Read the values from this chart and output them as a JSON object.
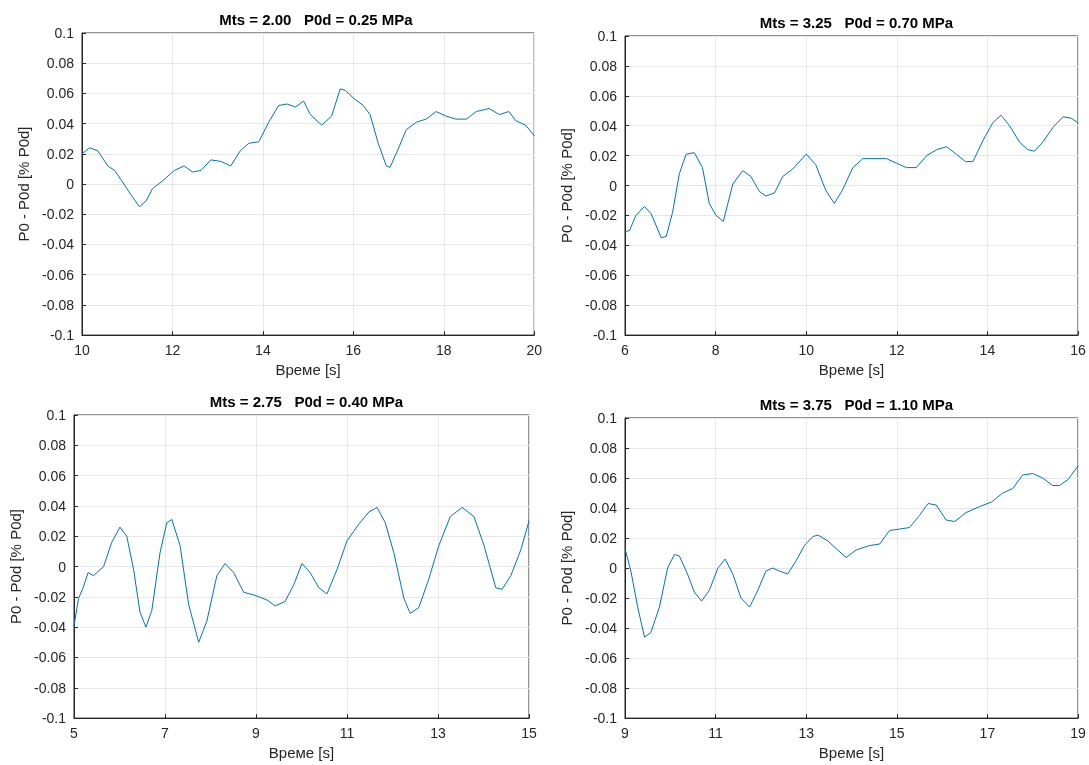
{
  "chart_data": [
    {
      "type": "line",
      "title": "Mts = 2.00   P0d = 0.25 MPa",
      "xlabel": "Време [s]",
      "ylabel": "P0 - P0d [% P0d]",
      "color": "#0072bd",
      "grid": true,
      "marker": "none",
      "line_style": "solid",
      "xlim": [
        10,
        20
      ],
      "xticks": [
        10,
        12,
        14,
        16,
        18,
        20
      ],
      "ylim": [
        -0.1,
        0.1
      ],
      "yticks": [
        -0.1,
        -0.08,
        -0.06,
        -0.04,
        -0.02,
        0,
        0.02,
        0.04,
        0.06,
        0.08,
        0.1
      ],
      "x": [
        10,
        10.17,
        10.35,
        10.57,
        10.72,
        10.86,
        11.08,
        11.27,
        11.42,
        11.56,
        11.78,
        12.04,
        12.26,
        12.44,
        12.63,
        12.85,
        13.07,
        13.29,
        13.5,
        13.69,
        13.91,
        14.13,
        14.35,
        14.53,
        14.72,
        14.9,
        15.05,
        15.3,
        15.52,
        15.71,
        15.82,
        16.0,
        16.22,
        16.37,
        16.55,
        16.73,
        16.81,
        16.99,
        17.17,
        17.4,
        17.61,
        17.83,
        18.05,
        18.27,
        18.5,
        18.72,
        19.0,
        19.23,
        19.44,
        19.59,
        19.81,
        20
      ],
      "values": [
        0.02,
        0.024,
        0.022,
        0.012,
        0.009,
        0.003,
        -0.007,
        -0.015,
        -0.011,
        -0.003,
        0.002,
        0.009,
        0.012,
        0.008,
        0.009,
        0.016,
        0.015,
        0.012,
        0.022,
        0.027,
        0.028,
        0.041,
        0.052,
        0.053,
        0.051,
        0.055,
        0.046,
        0.039,
        0.045,
        0.063,
        0.062,
        0.057,
        0.052,
        0.046,
        0.027,
        0.012,
        0.011,
        0.023,
        0.036,
        0.041,
        0.043,
        0.048,
        0.045,
        0.043,
        0.043,
        0.048,
        0.05,
        0.046,
        0.048,
        0.042,
        0.039,
        0.032
      ]
    },
    {
      "type": "line",
      "title": "Mts = 3.25   P0d = 0.70 MPa",
      "xlabel": "Време [s]",
      "ylabel": "P0 - P0d [% P0d]",
      "color": "#0072bd",
      "grid": true,
      "marker": "none",
      "line_style": "solid",
      "xlim": [
        6,
        16
      ],
      "xticks": [
        6,
        8,
        10,
        12,
        14,
        16
      ],
      "ylim": [
        -0.1,
        0.1
      ],
      "yticks": [
        -0.1,
        -0.08,
        -0.06,
        -0.04,
        -0.02,
        0,
        0.02,
        0.04,
        0.06,
        0.08,
        0.1
      ],
      "x": [
        6,
        6.1,
        6.24,
        6.43,
        6.58,
        6.8,
        6.91,
        7.05,
        7.2,
        7.35,
        7.53,
        7.71,
        7.86,
        8.01,
        8.17,
        8.38,
        8.6,
        8.78,
        8.97,
        9.11,
        9.3,
        9.48,
        9.7,
        10.0,
        10.21,
        10.43,
        10.62,
        10.8,
        11.03,
        11.25,
        11.47,
        11.77,
        11.99,
        12.21,
        12.43,
        12.66,
        12.88,
        13.1,
        13.31,
        13.52,
        13.68,
        13.9,
        14.12,
        14.3,
        14.49,
        14.71,
        14.89,
        15.04,
        15.22,
        15.45,
        15.67,
        15.85,
        16
      ],
      "values": [
        -0.031,
        -0.03,
        -0.02,
        -0.014,
        -0.019,
        -0.035,
        -0.034,
        -0.018,
        0.008,
        0.021,
        0.022,
        0.012,
        -0.012,
        -0.02,
        -0.024,
        0.001,
        0.01,
        0.006,
        -0.004,
        -0.007,
        -0.005,
        0.006,
        0.011,
        0.021,
        0.014,
        -0.003,
        -0.012,
        -0.003,
        0.012,
        0.018,
        0.018,
        0.018,
        0.015,
        0.012,
        0.012,
        0.02,
        0.024,
        0.026,
        0.021,
        0.016,
        0.016,
        0.03,
        0.042,
        0.047,
        0.04,
        0.029,
        0.024,
        0.023,
        0.029,
        0.039,
        0.046,
        0.045,
        0.042
      ]
    },
    {
      "type": "line",
      "title": "Mts = 2.75   P0d = 0.40 MPa",
      "xlabel": "Време [s]",
      "ylabel": "P0 - P0d [% P0d]",
      "color": "#0072bd",
      "grid": true,
      "marker": "none",
      "line_style": "solid",
      "xlim": [
        5,
        15
      ],
      "xticks": [
        5,
        7,
        9,
        11,
        13,
        15
      ],
      "ylim": [
        -0.1,
        0.1
      ],
      "yticks": [
        -0.1,
        -0.08,
        -0.06,
        -0.04,
        -0.02,
        0,
        0.02,
        0.04,
        0.06,
        0.08,
        0.1
      ],
      "x": [
        5,
        5.1,
        5.2,
        5.31,
        5.43,
        5.65,
        5.83,
        6.01,
        6.16,
        6.31,
        6.45,
        6.58,
        6.71,
        6.89,
        7.04,
        7.15,
        7.33,
        7.52,
        7.74,
        7.92,
        8.14,
        8.32,
        8.51,
        8.73,
        8.98,
        9.24,
        9.42,
        9.64,
        9.83,
        10.01,
        10.19,
        10.38,
        10.56,
        10.78,
        11.0,
        11.26,
        11.48,
        11.66,
        11.84,
        12.03,
        12.25,
        12.39,
        12.58,
        12.8,
        13.02,
        13.27,
        13.53,
        13.79,
        14.01,
        14.27,
        14.41,
        14.6,
        14.82,
        15
      ],
      "values": [
        -0.039,
        -0.021,
        -0.014,
        -0.004,
        -0.006,
        0,
        0.016,
        0.026,
        0.02,
        -0.002,
        -0.03,
        -0.04,
        -0.029,
        0.009,
        0.029,
        0.031,
        0.014,
        -0.025,
        -0.05,
        -0.036,
        -0.006,
        0.002,
        -0.004,
        -0.017,
        -0.019,
        -0.022,
        -0.026,
        -0.023,
        -0.012,
        0.002,
        -0.004,
        -0.014,
        -0.018,
        -0.002,
        0.017,
        0.028,
        0.036,
        0.039,
        0.029,
        0.009,
        -0.021,
        -0.031,
        -0.027,
        -0.008,
        0.014,
        0.033,
        0.039,
        0.033,
        0.014,
        -0.014,
        -0.015,
        -0.006,
        0.011,
        0.03
      ]
    },
    {
      "type": "line",
      "title": "Mts = 3.75   P0d = 1.10 MPa",
      "xlabel": "Време [s]",
      "ylabel": "P0 - P0d [% P0d]",
      "color": "#0072bd",
      "grid": true,
      "marker": "none",
      "line_style": "solid",
      "xlim": [
        9,
        19
      ],
      "xticks": [
        9,
        11,
        13,
        15,
        17,
        19
      ],
      "ylim": [
        -0.1,
        0.1
      ],
      "yticks": [
        -0.1,
        -0.08,
        -0.06,
        -0.04,
        -0.02,
        0,
        0.02,
        0.04,
        0.06,
        0.08,
        0.1
      ],
      "x": [
        9,
        9.13,
        9.28,
        9.43,
        9.57,
        9.76,
        9.94,
        10.09,
        10.2,
        10.38,
        10.53,
        10.69,
        10.86,
        11.05,
        11.21,
        11.38,
        11.56,
        11.75,
        11.93,
        12.11,
        12.26,
        12.41,
        12.59,
        12.78,
        12.96,
        13.15,
        13.26,
        13.48,
        13.66,
        13.88,
        14.1,
        14.4,
        14.62,
        14.84,
        15.06,
        15.28,
        15.5,
        15.69,
        15.87,
        16.09,
        16.28,
        16.53,
        16.83,
        17.09,
        17.34,
        17.56,
        17.78,
        18.0,
        18.22,
        18.44,
        18.59,
        18.78,
        19
      ],
      "values": [
        0.013,
        -0.002,
        -0.026,
        -0.046,
        -0.043,
        -0.026,
        0,
        0.009,
        0.008,
        -0.004,
        -0.016,
        -0.022,
        -0.015,
        0,
        0.006,
        -0.004,
        -0.02,
        -0.026,
        -0.015,
        -0.002,
        0,
        -0.002,
        -0.004,
        0.005,
        0.015,
        0.021,
        0.022,
        0.018,
        0.013,
        0.007,
        0.012,
        0.015,
        0.016,
        0.025,
        0.026,
        0.027,
        0.035,
        0.043,
        0.042,
        0.032,
        0.031,
        0.037,
        0.041,
        0.044,
        0.05,
        0.053,
        0.062,
        0.063,
        0.06,
        0.055,
        0.055,
        0.059,
        0.068
      ]
    }
  ]
}
